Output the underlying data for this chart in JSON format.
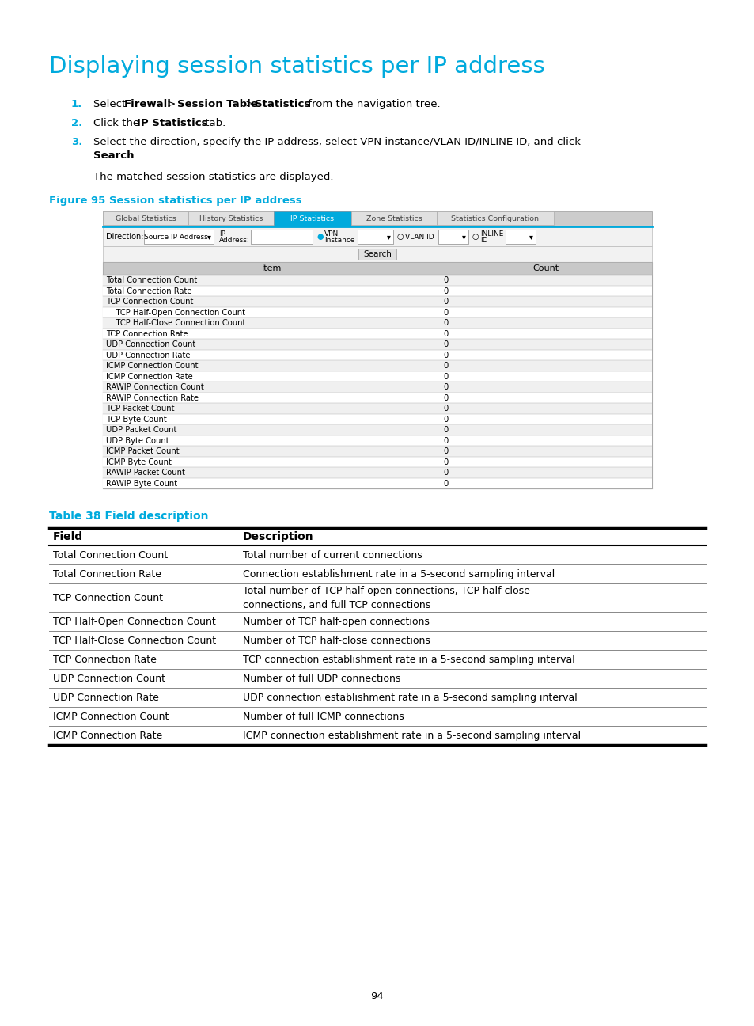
{
  "title": "Displaying session statistics per IP address",
  "title_color": "#00AADD",
  "bg_color": "#ffffff",
  "page_number": "94",
  "figure_label": "Figure 95 Session statistics per IP address",
  "figure_label_color": "#00AADD",
  "tabs": [
    "Global Statistics",
    "History Statistics",
    "IP Statistics",
    "Zone Statistics",
    "Statistics Configuration"
  ],
  "active_tab": 2,
  "active_tab_color": "#00AADD",
  "table_header_bg": "#C8C8C8",
  "table_row_odd_bg": "#F0F0F0",
  "table_row_even_bg": "#FFFFFF",
  "table_border_color": "#AAAAAA",
  "table_header_items": [
    "Item",
    "Count"
  ],
  "table_rows": [
    [
      "Total Connection Count",
      "0"
    ],
    [
      "Total Connection Rate",
      "0"
    ],
    [
      "TCP Connection Count",
      "0"
    ],
    [
      "    TCP Half-Open Connection Count",
      "0"
    ],
    [
      "    TCP Half-Close Connection Count",
      "0"
    ],
    [
      "TCP Connection Rate",
      "0"
    ],
    [
      "UDP Connection Count",
      "0"
    ],
    [
      "UDP Connection Rate",
      "0"
    ],
    [
      "ICMP Connection Count",
      "0"
    ],
    [
      "ICMP Connection Rate",
      "0"
    ],
    [
      "RAWIP Connection Count",
      "0"
    ],
    [
      "RAWIP Connection Rate",
      "0"
    ],
    [
      "TCP Packet Count",
      "0"
    ],
    [
      "TCP Byte Count",
      "0"
    ],
    [
      "UDP Packet Count",
      "0"
    ],
    [
      "UDP Byte Count",
      "0"
    ],
    [
      "ICMP Packet Count",
      "0"
    ],
    [
      "ICMP Byte Count",
      "0"
    ],
    [
      "RAWIP Packet Count",
      "0"
    ],
    [
      "RAWIP Byte Count",
      "0"
    ]
  ],
  "table2_label": "Table 38 Field description",
  "table2_label_color": "#00AADD",
  "table2_header": [
    "Field",
    "Description"
  ],
  "table2_rows": [
    [
      "Total Connection Count",
      "Total number of current connections"
    ],
    [
      "Total Connection Rate",
      "Connection establishment rate in a 5-second sampling interval"
    ],
    [
      "TCP Connection Count",
      "Total number of TCP half-open connections, TCP half-close\nconnections, and full TCP connections"
    ],
    [
      "TCP Half-Open Connection Count",
      "Number of TCP half-open connections"
    ],
    [
      "TCP Half-Close Connection Count",
      "Number of TCP half-close connections"
    ],
    [
      "TCP Connection Rate",
      "TCP connection establishment rate in a 5-second sampling interval"
    ],
    [
      "UDP Connection Count",
      "Number of full UDP connections"
    ],
    [
      "UDP Connection Rate",
      "UDP connection establishment rate in a 5-second sampling interval"
    ],
    [
      "ICMP Connection Count",
      "Number of full ICMP connections"
    ],
    [
      "ICMP Connection Rate",
      "ICMP connection establishment rate in a 5-second sampling interval"
    ]
  ]
}
